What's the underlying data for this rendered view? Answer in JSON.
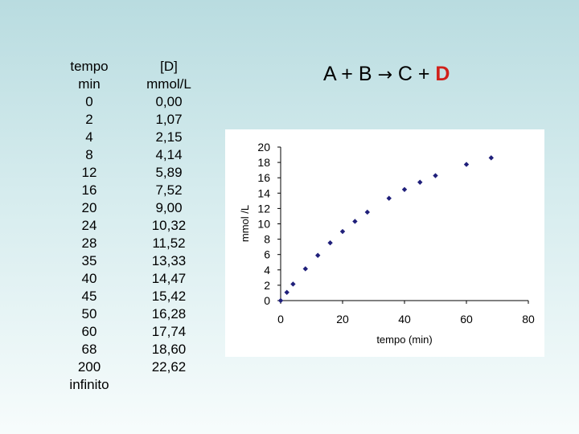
{
  "table": {
    "headers": {
      "tempo": [
        "tempo",
        "min"
      ],
      "d": [
        "[D]",
        "mmol/L"
      ]
    },
    "tempo": [
      "0",
      "2",
      "4",
      "8",
      "12",
      "16",
      "20",
      "24",
      "28",
      "35",
      "40",
      "45",
      "50",
      "60",
      "68",
      "200",
      "infinito"
    ],
    "d": [
      "0,00",
      "1,07",
      "2,15",
      "4,14",
      "5,89",
      "7,52",
      "9,00",
      "10,32",
      "11,52",
      "13,33",
      "14,47",
      "15,42",
      "16,28",
      "17,74",
      "18,60",
      "22,62",
      ""
    ]
  },
  "equation": {
    "reactant_a": "A",
    "plus1": "+",
    "reactant_b": "B",
    "arrow": "→",
    "product_c": "C",
    "plus2": "+",
    "product_d": "D"
  },
  "chart_data": {
    "type": "scatter",
    "xlabel": "tempo (min)",
    "ylabel": "mmol /L",
    "xlim": [
      0,
      80
    ],
    "ylim": [
      0,
      20
    ],
    "xticks": [
      0,
      20,
      40,
      60,
      80
    ],
    "yticks": [
      0,
      2,
      4,
      6,
      8,
      10,
      12,
      14,
      16,
      18,
      20
    ],
    "grid": false,
    "marker_color": "#1f1f7a",
    "x": [
      0,
      2,
      4,
      8,
      12,
      16,
      20,
      24,
      28,
      35,
      40,
      45,
      50,
      60,
      68
    ],
    "y": [
      0.0,
      1.07,
      2.15,
      4.14,
      5.89,
      7.52,
      9.0,
      10.32,
      11.52,
      13.33,
      14.47,
      15.42,
      16.28,
      17.74,
      18.6
    ]
  }
}
